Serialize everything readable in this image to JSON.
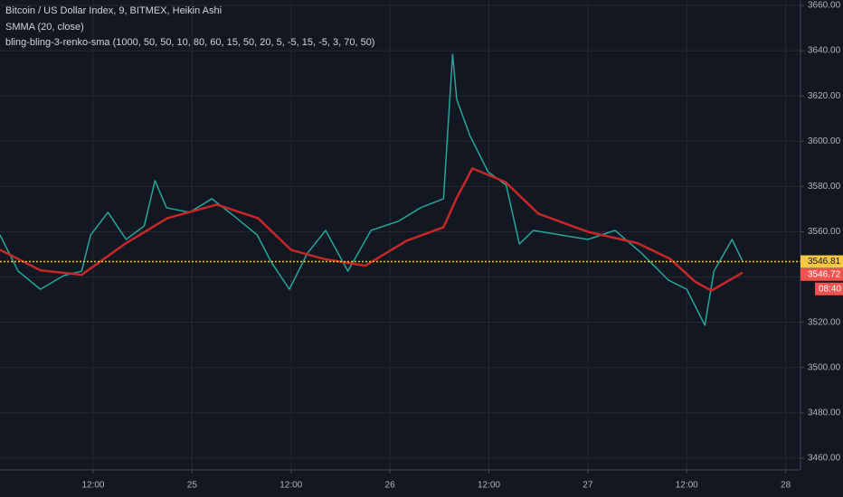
{
  "chart_data": {
    "type": "line",
    "title": "Bitcoin / US Dollar Index, 9, BITMEX, Heikin Ashi",
    "legend_lines": [
      "SMMA (20, close)",
      "bling-bling-3-renko-sma (1000, 50, 50, 10, 80, 60, 15, 50, 20, 5, -5, 15, -5, 3, 70, 50)"
    ],
    "series": [
      {
        "name": "Heikin Ashi",
        "color": "#26a69a",
        "x": [
          0.7,
          2.9,
          5.6,
          8.4,
          10.6,
          11.7,
          13.8,
          16,
          18.2,
          19.5,
          20.9,
          23.7,
          26.4,
          29.2,
          31.9,
          33.6,
          35.8,
          38,
          40.2,
          42.9,
          45.7,
          49,
          51.7,
          54.5,
          55.6,
          56.1,
          57.7,
          59.9,
          62.1,
          63.7,
          65.4,
          68.7,
          72,
          75.3,
          78.5,
          81.8,
          84,
          86.2,
          87.3,
          89.5,
          90.8
        ],
        "values": [
          3558.6,
          3542.6,
          3534.6,
          3540.6,
          3542.6,
          3558.6,
          3568.6,
          3556.6,
          3562.6,
          3582.6,
          3570.6,
          3568.6,
          3574.6,
          3566.6,
          3558.6,
          3546.6,
          3534.6,
          3550.6,
          3560.6,
          3542.6,
          3560.6,
          3564.6,
          3570.6,
          3574.6,
          3638.4,
          3618.5,
          3602.5,
          3586.5,
          3580.6,
          3554.6,
          3560.6,
          3558.6,
          3556.6,
          3560.6,
          3550.6,
          3538.6,
          3534.6,
          3518.7,
          3542.6,
          3556.6,
          3546.8
        ]
      },
      {
        "name": "SMMA (20, close)",
        "color": "#c62828",
        "x": [
          0.7,
          5.6,
          10.6,
          16,
          21,
          27,
          32,
          36,
          40,
          45,
          50,
          54.5,
          56.1,
          58,
          62,
          66,
          72,
          78,
          82,
          85,
          87,
          90.8
        ],
        "values": [
          3552,
          3543,
          3541,
          3555,
          3566,
          3572,
          3566,
          3552,
          3548,
          3545,
          3556,
          3562,
          3575,
          3588,
          3582,
          3568,
          3560,
          3555,
          3548,
          3538,
          3534,
          3542
        ]
      }
    ],
    "price_markers": [
      {
        "value": 3546.81,
        "color": "#f5c842"
      },
      {
        "value": 3546.72,
        "color": "#ef5350"
      }
    ],
    "countdown": "08:40",
    "xlim": [
      0.7,
      97.8
    ],
    "xticks": [
      {
        "value": 12,
        "label": "12:00"
      },
      {
        "value": 24,
        "label": "25"
      },
      {
        "value": 36,
        "label": "12:00"
      },
      {
        "value": 48,
        "label": "26"
      },
      {
        "value": 60,
        "label": "12:00"
      },
      {
        "value": 72,
        "label": "27"
      },
      {
        "value": 84,
        "label": "12:00"
      },
      {
        "value": 96,
        "label": "28"
      }
    ],
    "ylim": [
      3454.8,
      3662.4
    ],
    "yticks": [
      {
        "value": 3460,
        "label": "3460.00"
      },
      {
        "value": 3480,
        "label": "3480.00"
      },
      {
        "value": 3500,
        "label": "3500.00"
      },
      {
        "value": 3520,
        "label": "3520.00"
      },
      {
        "value": 3540,
        "label": "3540.00"
      },
      {
        "value": 3560,
        "label": "3560.00"
      },
      {
        "value": 3580,
        "label": "3580.00"
      },
      {
        "value": 3600,
        "label": "3600.00"
      },
      {
        "value": 3620,
        "label": "3620.00"
      },
      {
        "value": 3640,
        "label": "3640.00"
      },
      {
        "value": 3660,
        "label": "3660.00"
      }
    ],
    "grid": true
  }
}
